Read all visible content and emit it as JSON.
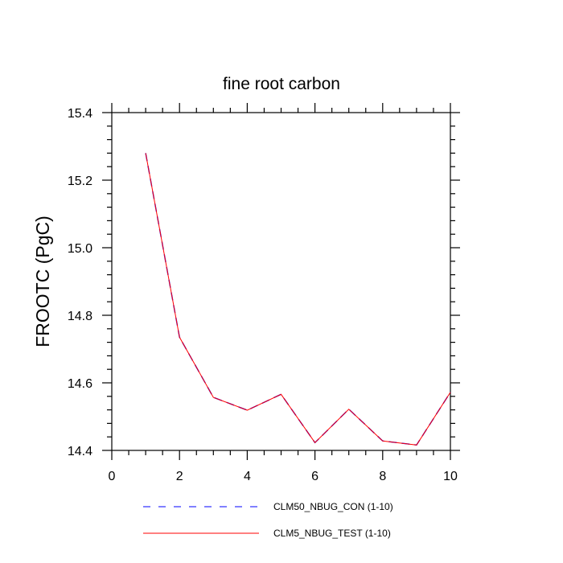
{
  "chart_data": {
    "type": "line",
    "title": "fine root carbon",
    "xlabel": "",
    "ylabel": "FROOTC  (PgC)",
    "xlim": [
      0,
      10
    ],
    "ylim": [
      14.4,
      15.4
    ],
    "x_ticks": [
      0,
      2,
      4,
      6,
      8,
      10
    ],
    "y_ticks": [
      14.4,
      14.6,
      14.8,
      15.0,
      15.2,
      15.4
    ],
    "x_tick_labels": [
      "0",
      "2",
      "4",
      "6",
      "8",
      "10"
    ],
    "y_tick_labels": [
      "14.4",
      "14.6",
      "14.8",
      "15.0",
      "15.2",
      "15.4"
    ],
    "grid": false,
    "legend_position": "bottom",
    "x": [
      1,
      2,
      3,
      4,
      5,
      6,
      7,
      8,
      9,
      10
    ],
    "series": [
      {
        "name": "CLM50_NBUG_CON (1-10)",
        "color": "#0000ff",
        "dash": "dashed",
        "values": [
          15.28,
          14.735,
          14.557,
          14.519,
          14.566,
          14.423,
          14.522,
          14.428,
          14.416,
          14.572
        ]
      },
      {
        "name": "CLM5_NBUG_TEST (1-10)",
        "color": "#ff0000",
        "dash": "solid",
        "values": [
          15.28,
          14.735,
          14.557,
          14.519,
          14.566,
          14.423,
          14.522,
          14.428,
          14.416,
          14.572
        ]
      }
    ]
  }
}
